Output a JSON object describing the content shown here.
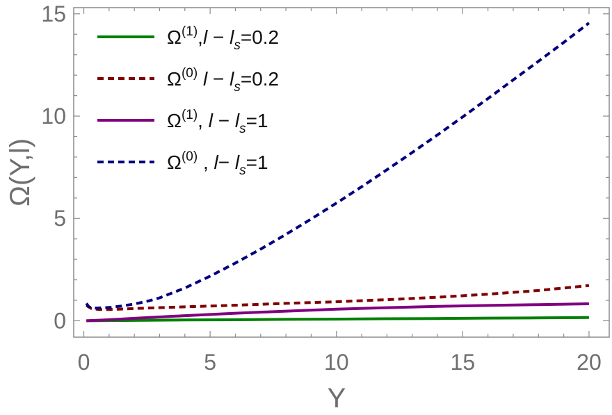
{
  "chart_data": {
    "type": "line",
    "title": "",
    "xlabel": "Y",
    "ylabel": "Ω(Y,l)",
    "xlim": [
      -0.4,
      20.8
    ],
    "ylim": [
      -0.8,
      15.3
    ],
    "xticks": [
      0,
      5,
      10,
      15,
      20
    ],
    "yticks": [
      0,
      5,
      10,
      15
    ],
    "grid": false,
    "legend_position": "top-left",
    "series": [
      {
        "name": "Ω(1),l − ls=0.2",
        "color": "#008000",
        "dash": "solid",
        "x": [
          0.1,
          2,
          4,
          6,
          8,
          10,
          12,
          14,
          16,
          18,
          20
        ],
        "y": [
          0.0,
          0.02,
          0.04,
          0.05,
          0.07,
          0.08,
          0.1,
          0.11,
          0.13,
          0.14,
          0.16
        ]
      },
      {
        "name": "Ω(0) l − ls=0.2",
        "color": "#800000",
        "dash": "dashed",
        "x": [
          0.1,
          0.3,
          0.6,
          1,
          2,
          4,
          6,
          8,
          10,
          12,
          14,
          16,
          18,
          20
        ],
        "y": [
          0.75,
          0.6,
          0.55,
          0.55,
          0.6,
          0.68,
          0.76,
          0.85,
          0.93,
          1.03,
          1.15,
          1.3,
          1.48,
          1.72
        ]
      },
      {
        "name": "Ω(1), l − ls=1",
        "color": "#800080",
        "dash": "solid",
        "x": [
          0.1,
          1,
          2,
          4,
          6,
          8,
          10,
          12,
          14,
          16,
          18,
          20
        ],
        "y": [
          0.0,
          0.05,
          0.12,
          0.25,
          0.37,
          0.47,
          0.57,
          0.64,
          0.7,
          0.75,
          0.79,
          0.83
        ]
      },
      {
        "name": "Ω(0) , l− ls=1",
        "color": "#000080",
        "dash": "dashed",
        "x": [
          0.1,
          0.2,
          0.35,
          0.5,
          1,
          1.5,
          2,
          2.5,
          3,
          4,
          5,
          6,
          7,
          8,
          9,
          10,
          11,
          12,
          13,
          14,
          15,
          16,
          17,
          18,
          19,
          20
        ],
        "y": [
          0.85,
          0.68,
          0.63,
          0.62,
          0.65,
          0.72,
          0.82,
          0.95,
          1.12,
          1.6,
          2.18,
          2.82,
          3.5,
          4.22,
          4.97,
          5.75,
          6.55,
          7.38,
          8.22,
          9.08,
          9.96,
          10.86,
          11.77,
          12.68,
          13.6,
          14.55
        ]
      }
    ]
  },
  "legend": [
    {
      "base": "Ω",
      "sup": "(1)",
      "mid": ",",
      "v1": "l",
      "op": " − ",
      "v2": "l",
      "sub": "s",
      "tail": "=0.2"
    },
    {
      "base": "Ω",
      "sup": "(0)",
      "mid": " ",
      "v1": "l",
      "op": " − ",
      "v2": "l",
      "sub": "s",
      "tail": "=0.2"
    },
    {
      "base": "Ω",
      "sup": "(1)",
      "mid": ", ",
      "v1": "l",
      "op": " − ",
      "v2": "l",
      "sub": "s",
      "tail": "=1"
    },
    {
      "base": "Ω",
      "sup": "(0)",
      "mid": " , ",
      "v1": "l",
      "op": "− ",
      "v2": "l",
      "sub": "s",
      "tail": "=1"
    }
  ]
}
